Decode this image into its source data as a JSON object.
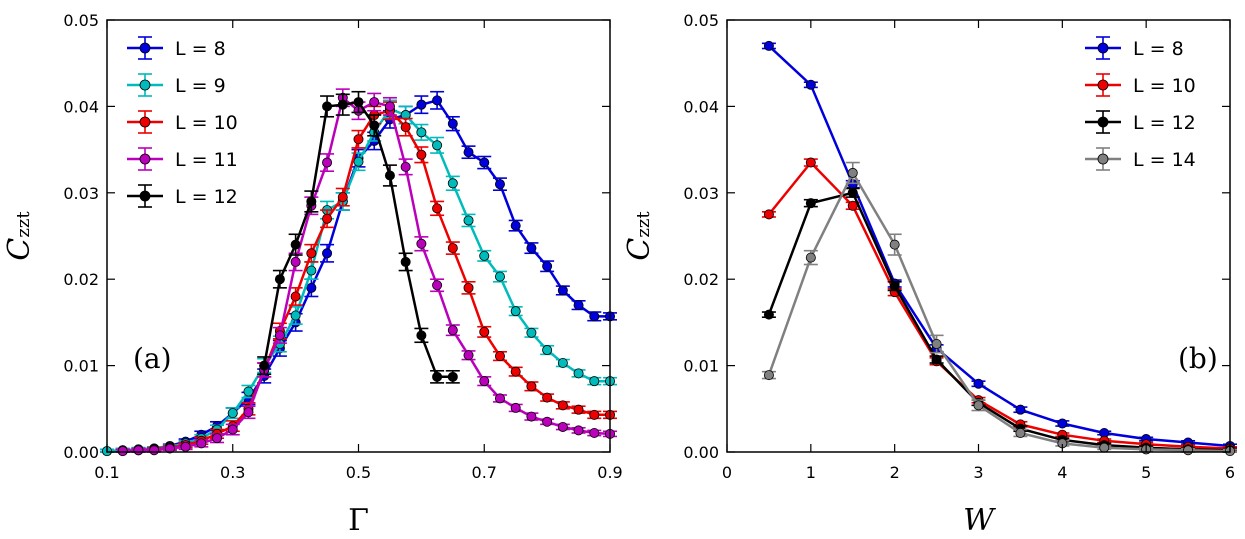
{
  "chart_data": [
    {
      "type": "line",
      "panel_label": "(a)",
      "xlabel": "Γ",
      "ylabel_main": "C",
      "ylabel_sub": "zzt",
      "xlim": [
        0.1,
        0.9
      ],
      "ylim": [
        0.0,
        0.05
      ],
      "xticks": [
        0.1,
        0.3,
        0.5,
        0.7,
        0.9
      ],
      "xtick_labels": [
        "0.1",
        "0.3",
        "0.5",
        "0.7",
        "0.9"
      ],
      "yticks": [
        0.0,
        0.01,
        0.02,
        0.03,
        0.04,
        0.05
      ],
      "ytick_labels": [
        "0.00",
        "0.01",
        "0.02",
        "0.03",
        "0.04",
        "0.05"
      ],
      "legend_position": "top-left",
      "series": [
        {
          "name": "L = 8",
          "color": "#0000dd",
          "x": [
            0.1,
            0.125,
            0.15,
            0.175,
            0.2,
            0.225,
            0.25,
            0.275,
            0.3,
            0.325,
            0.35,
            0.375,
            0.4,
            0.425,
            0.45,
            0.475,
            0.5,
            0.525,
            0.55,
            0.575,
            0.6,
            0.625,
            0.65,
            0.675,
            0.7,
            0.725,
            0.75,
            0.775,
            0.8,
            0.825,
            0.85,
            0.875,
            0.9
          ],
          "y": [
            0.0001,
            0.0002,
            0.0003,
            0.0004,
            0.0007,
            0.0012,
            0.002,
            0.003,
            0.0045,
            0.0062,
            0.0088,
            0.012,
            0.015,
            0.019,
            0.023,
            0.029,
            0.034,
            0.036,
            0.0385,
            0.039,
            0.0402,
            0.0407,
            0.038,
            0.0347,
            0.0335,
            0.031,
            0.0262,
            0.0236,
            0.0215,
            0.0187,
            0.017,
            0.0157,
            0.0157
          ],
          "err": [
            0.0002,
            0.0002,
            0.0002,
            0.0002,
            0.0002,
            0.0003,
            0.0004,
            0.0005,
            0.0006,
            0.0007,
            0.0008,
            0.0009,
            0.001,
            0.001,
            0.001,
            0.001,
            0.001,
            0.001,
            0.001,
            0.001,
            0.001,
            0.001,
            0.0008,
            0.0007,
            0.0007,
            0.0007,
            0.0006,
            0.0006,
            0.0006,
            0.0005,
            0.0005,
            0.0005,
            0.0004
          ]
        },
        {
          "name": "L = 9",
          "color": "#00bbbb",
          "x": [
            0.1,
            0.125,
            0.15,
            0.175,
            0.2,
            0.225,
            0.25,
            0.275,
            0.3,
            0.325,
            0.35,
            0.375,
            0.4,
            0.425,
            0.45,
            0.475,
            0.5,
            0.525,
            0.55,
            0.575,
            0.6,
            0.625,
            0.65,
            0.675,
            0.7,
            0.725,
            0.75,
            0.775,
            0.8,
            0.825,
            0.85,
            0.875,
            0.9
          ],
          "y": [
            0.0001,
            0.0002,
            0.0003,
            0.0004,
            0.0006,
            0.001,
            0.0016,
            0.0026,
            0.0045,
            0.007,
            0.01,
            0.0125,
            0.0158,
            0.021,
            0.028,
            0.029,
            0.0336,
            0.037,
            0.0397,
            0.039,
            0.037,
            0.0355,
            0.0311,
            0.0268,
            0.0227,
            0.0203,
            0.0163,
            0.0138,
            0.0118,
            0.0103,
            0.0091,
            0.0082,
            0.0082
          ],
          "err": [
            0.0002,
            0.0002,
            0.0002,
            0.0002,
            0.0002,
            0.0003,
            0.0004,
            0.0005,
            0.0006,
            0.0007,
            0.0008,
            0.0009,
            0.001,
            0.001,
            0.001,
            0.001,
            0.001,
            0.001,
            0.001,
            0.001,
            0.0009,
            0.0009,
            0.0008,
            0.0007,
            0.0006,
            0.0006,
            0.0005,
            0.0005,
            0.0005,
            0.0004,
            0.0004,
            0.0004,
            0.0004
          ]
        },
        {
          "name": "L = 10",
          "color": "#ee0000",
          "x": [
            0.125,
            0.15,
            0.175,
            0.2,
            0.225,
            0.25,
            0.275,
            0.3,
            0.325,
            0.35,
            0.375,
            0.4,
            0.425,
            0.45,
            0.475,
            0.5,
            0.525,
            0.55,
            0.575,
            0.6,
            0.625,
            0.65,
            0.675,
            0.7,
            0.725,
            0.75,
            0.775,
            0.8,
            0.825,
            0.85,
            0.875,
            0.9
          ],
          "y": [
            0.0001,
            0.0002,
            0.0003,
            0.0005,
            0.0008,
            0.0013,
            0.0021,
            0.003,
            0.005,
            0.0095,
            0.014,
            0.018,
            0.023,
            0.027,
            0.0295,
            0.0362,
            0.039,
            0.0395,
            0.0376,
            0.0344,
            0.0282,
            0.0236,
            0.019,
            0.0139,
            0.0111,
            0.0093,
            0.0076,
            0.0063,
            0.0054,
            0.0049,
            0.0043,
            0.0043
          ],
          "err": [
            0.0002,
            0.0002,
            0.0002,
            0.0002,
            0.0003,
            0.0004,
            0.0005,
            0.0006,
            0.0007,
            0.0008,
            0.0009,
            0.001,
            0.001,
            0.001,
            0.001,
            0.001,
            0.001,
            0.001,
            0.001,
            0.0009,
            0.0008,
            0.0007,
            0.0007,
            0.0006,
            0.0005,
            0.0005,
            0.0005,
            0.0004,
            0.0004,
            0.0004,
            0.0004,
            0.0004
          ]
        },
        {
          "name": "L = 11",
          "color": "#bb00bb",
          "x": [
            0.125,
            0.15,
            0.175,
            0.2,
            0.225,
            0.25,
            0.275,
            0.3,
            0.325,
            0.35,
            0.375,
            0.4,
            0.425,
            0.45,
            0.475,
            0.5,
            0.525,
            0.55,
            0.575,
            0.6,
            0.625,
            0.65,
            0.675,
            0.7,
            0.725,
            0.75,
            0.775,
            0.8,
            0.825,
            0.85,
            0.875,
            0.9
          ],
          "y": [
            0.0001,
            0.0002,
            0.0002,
            0.0004,
            0.0006,
            0.001,
            0.0016,
            0.0026,
            0.0046,
            0.0095,
            0.0135,
            0.022,
            0.0285,
            0.0335,
            0.041,
            0.0395,
            0.0405,
            0.04,
            0.033,
            0.0241,
            0.0193,
            0.0141,
            0.0112,
            0.0082,
            0.0062,
            0.0051,
            0.0041,
            0.0035,
            0.0029,
            0.0025,
            0.0022,
            0.0021
          ],
          "err": [
            0.0002,
            0.0002,
            0.0002,
            0.0002,
            0.0003,
            0.0004,
            0.0005,
            0.0006,
            0.0007,
            0.0008,
            0.0009,
            0.001,
            0.001,
            0.001,
            0.001,
            0.001,
            0.001,
            0.001,
            0.0009,
            0.0008,
            0.0007,
            0.0006,
            0.0005,
            0.0005,
            0.0004,
            0.0004,
            0.0004,
            0.0003,
            0.0003,
            0.0003,
            0.0003,
            0.0003
          ]
        },
        {
          "name": "L = 12",
          "color": "#000000",
          "x": [
            0.35,
            0.375,
            0.4,
            0.425,
            0.45,
            0.475,
            0.5,
            0.525,
            0.55,
            0.575,
            0.6,
            0.625,
            0.65
          ],
          "y": [
            0.01,
            0.02,
            0.024,
            0.029,
            0.04,
            0.0402,
            0.0405,
            0.0378,
            0.032,
            0.022,
            0.0135,
            0.0087,
            0.0087
          ],
          "err": [
            0.001,
            0.001,
            0.0012,
            0.0012,
            0.0012,
            0.0012,
            0.0012,
            0.0012,
            0.0012,
            0.001,
            0.0008,
            0.0007,
            0.0007
          ]
        }
      ]
    },
    {
      "type": "line",
      "panel_label": "(b)",
      "xlabel": "W",
      "ylabel_main": "C",
      "ylabel_sub": "zzt",
      "xlim": [
        0,
        6
      ],
      "ylim": [
        0.0,
        0.05
      ],
      "xticks": [
        0,
        1,
        2,
        3,
        4,
        5,
        6
      ],
      "xtick_labels": [
        "0",
        "1",
        "2",
        "3",
        "4",
        "5",
        "6"
      ],
      "yticks": [
        0.0,
        0.01,
        0.02,
        0.03,
        0.04,
        0.05
      ],
      "ytick_labels": [
        "0.00",
        "0.01",
        "0.02",
        "0.03",
        "0.04",
        "0.05"
      ],
      "legend_position": "top-right",
      "series": [
        {
          "name": "L = 8",
          "color": "#0000dd",
          "x": [
            0.5,
            1,
            1.5,
            2,
            2.5,
            3,
            3.5,
            4,
            4.5,
            5,
            5.5,
            6
          ],
          "y": [
            0.047,
            0.0425,
            0.031,
            0.0195,
            0.012,
            0.0079,
            0.0049,
            0.0033,
            0.0022,
            0.0015,
            0.0011,
            0.0007
          ],
          "err": [
            0.0003,
            0.0003,
            0.0004,
            0.0004,
            0.0004,
            0.0003,
            0.0003,
            0.0003,
            0.0002,
            0.0002,
            0.0002,
            0.0002
          ]
        },
        {
          "name": "L = 10",
          "color": "#ee0000",
          "x": [
            0.5,
            1,
            1.5,
            2,
            2.5,
            3,
            3.5,
            4,
            4.5,
            5,
            5.5,
            6
          ],
          "y": [
            0.0275,
            0.0335,
            0.0285,
            0.0185,
            0.0105,
            0.006,
            0.0032,
            0.002,
            0.0013,
            0.0009,
            0.0006,
            0.0004
          ],
          "err": [
            0.0003,
            0.0004,
            0.0004,
            0.0004,
            0.0004,
            0.0003,
            0.0003,
            0.0002,
            0.0002,
            0.0002,
            0.0002,
            0.0002
          ]
        },
        {
          "name": "L = 12",
          "color": "#000000",
          "x": [
            0.5,
            1,
            1.5,
            2,
            2.5,
            3,
            3.5,
            4,
            4.5,
            5,
            5.5,
            6
          ],
          "y": [
            0.0159,
            0.0288,
            0.03,
            0.0192,
            0.0107,
            0.0057,
            0.0027,
            0.0014,
            0.0008,
            0.0005,
            0.0003,
            0.0002
          ],
          "err": [
            0.0003,
            0.0004,
            0.0005,
            0.0005,
            0.0004,
            0.0003,
            0.0003,
            0.0002,
            0.0002,
            0.0002,
            0.0002,
            0.0002
          ]
        },
        {
          "name": "L = 14",
          "color": "#808080",
          "x": [
            0.5,
            1,
            1.5,
            2,
            2.5,
            3,
            3.5,
            4,
            4.5,
            5,
            5.5,
            6
          ],
          "y": [
            0.0089,
            0.0225,
            0.0323,
            0.024,
            0.0125,
            0.0054,
            0.0022,
            0.001,
            0.0005,
            0.0003,
            0.0002,
            0.0001
          ],
          "err": [
            0.0004,
            0.0008,
            0.0012,
            0.0012,
            0.001,
            0.0006,
            0.0004,
            0.0003,
            0.0002,
            0.0002,
            0.0002,
            0.0002
          ]
        }
      ]
    }
  ]
}
